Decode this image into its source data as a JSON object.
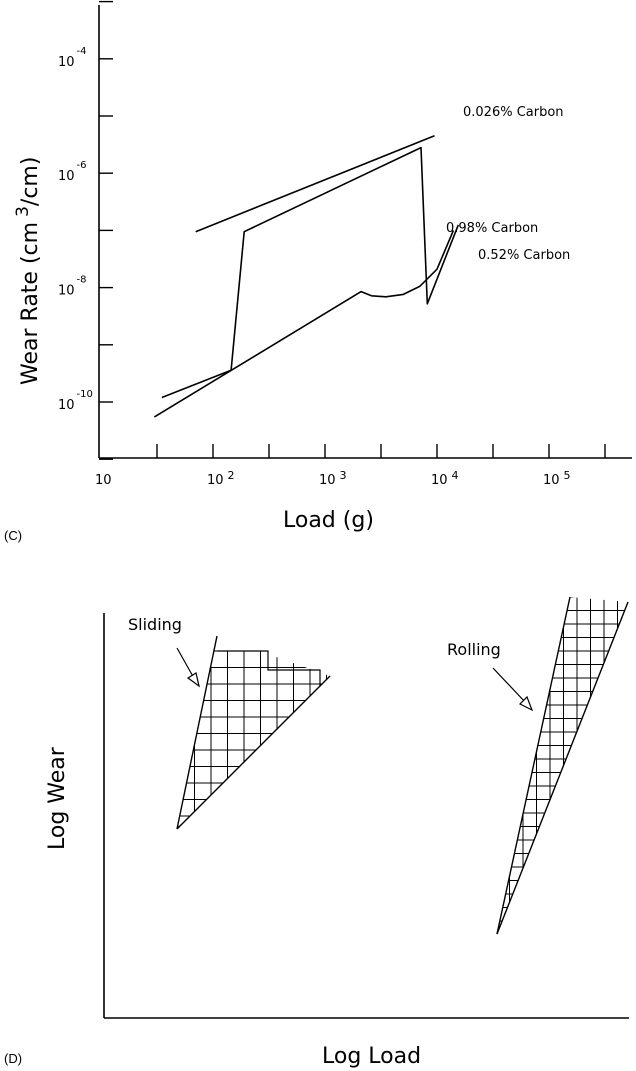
{
  "panel_c": {
    "tag": "(C)",
    "ylabel_main": "Wear Rate (cm",
    "ylabel_exp": "3",
    "ylabel_tail": "/cm)",
    "xlabel": "Load (g)"
  },
  "panel_d": {
    "tag": "(D)",
    "xlabel": "Log Load",
    "ylabel": "Log Wear"
  },
  "chart_data": [
    {
      "type": "line",
      "title": "",
      "xlabel": "Load (g)",
      "ylabel": "Wear Rate (cm 3/cm)",
      "xscale": "log",
      "yscale": "log",
      "xlim": [
        10,
        500000
      ],
      "ylim": [
        1e-11,
        0.001
      ],
      "grid": false,
      "x_tick_labels": [
        {
          "base": "10",
          "exp": "",
          "value": 10
        },
        {
          "base": "10",
          "exp": "2",
          "value": 100
        },
        {
          "base": "10",
          "exp": "3",
          "value": 1000
        },
        {
          "base": "10",
          "exp": "4",
          "value": 10000
        },
        {
          "base": "10",
          "exp": "5",
          "value": 100000
        }
      ],
      "y_tick_labels": [
        {
          "base": "10",
          "exp": "-4",
          "value": 0.0001
        },
        {
          "base": "10",
          "exp": "-6",
          "value": 1e-06
        },
        {
          "base": "10",
          "exp": "-8",
          "value": 1e-08
        },
        {
          "base": "10",
          "exp": "-10",
          "value": 1e-10
        }
      ],
      "series": [
        {
          "name": "0.026% Carbon",
          "points": [
            [
              70,
              9.5e-08
            ],
            [
              9500,
              4.5e-06
            ]
          ]
        },
        {
          "name": "0.98% Carbon",
          "points": [
            [
              35,
              1.2e-10
            ],
            [
              145,
              3.6e-10
            ],
            [
              190,
              9.5e-08
            ],
            [
              7200,
              2.8e-06
            ],
            [
              8200,
              5.2e-09
            ],
            [
              15500,
              1.25e-07
            ]
          ]
        },
        {
          "name": "0.52% Carbon",
          "points": [
            [
              30,
              5.5e-11
            ],
            [
              2100,
              8.5e-09
            ],
            [
              2600,
              7.2e-09
            ],
            [
              3500,
              6.9e-09
            ],
            [
              5000,
              7.6e-09
            ],
            [
              7000,
              1.05e-08
            ],
            [
              10000,
              2.1e-08
            ],
            [
              12300,
              5.5e-08
            ],
            [
              14000,
              1e-07
            ]
          ]
        }
      ]
    },
    {
      "type": "area",
      "title": "",
      "xlabel": "Log Load",
      "ylabel": "Log Wear",
      "note": "schematic, no numeric scale",
      "xlim": [
        0,
        1
      ],
      "ylim": [
        0,
        1
      ],
      "series": [
        {
          "name": "Sliding",
          "polygon": [
            [
              0.142,
              0.948
            ],
            [
              0.214,
              0.845
            ],
            [
              0.16,
              0.469
            ]
          ]
        },
        {
          "name": "Rolling",
          "polygon": [
            [
              0.84,
              1.035
            ],
            [
              0.895,
              1.023
            ],
            [
              0.698,
              0.247
            ]
          ]
        }
      ]
    }
  ]
}
